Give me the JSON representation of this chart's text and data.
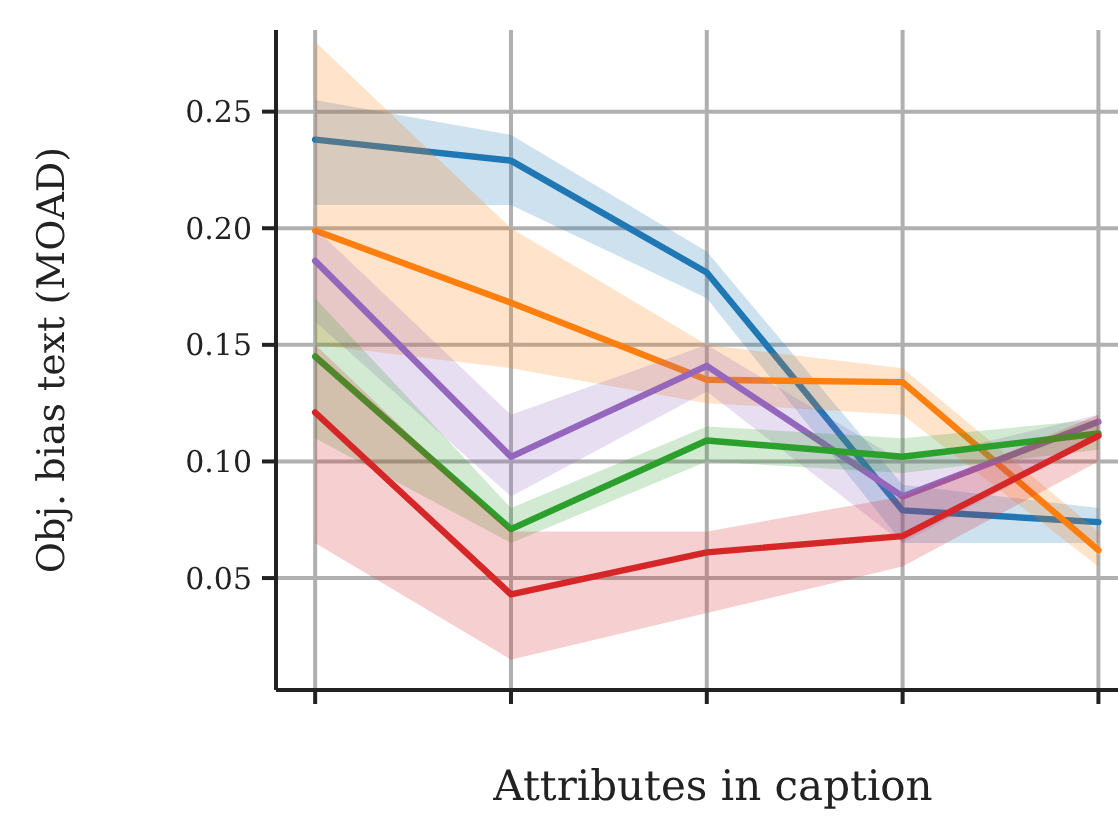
{
  "chart_data": {
    "type": "line",
    "xlabel": "Attributes in caption",
    "ylabel": "Obj. bias text (MOAD)",
    "categories": [
      null,
      null,
      null,
      null,
      null
    ],
    "series": [
      {
        "color": "#1f77b4",
        "values": [
          0.238,
          0.229,
          0.181,
          0.079,
          0.074
        ],
        "lower": [
          0.21,
          0.21,
          0.17,
          0.065,
          0.065
        ],
        "upper": [
          0.255,
          0.24,
          0.19,
          0.09,
          0.08
        ]
      },
      {
        "color": "#ff7f0e",
        "values": [
          0.199,
          0.168,
          0.135,
          0.134,
          0.062
        ],
        "lower": [
          0.15,
          0.14,
          0.125,
          0.12,
          0.055
        ],
        "upper": [
          0.28,
          0.2,
          0.15,
          0.14,
          0.07
        ]
      },
      {
        "color": "#9467bd",
        "values": [
          0.186,
          0.102,
          0.141,
          0.085,
          0.117
        ],
        "lower": [
          0.16,
          0.085,
          0.13,
          0.065,
          0.11
        ],
        "upper": [
          0.2,
          0.12,
          0.15,
          0.1,
          0.12
        ]
      },
      {
        "color": "#2ca02c",
        "values": [
          0.145,
          0.071,
          0.109,
          0.102,
          0.112
        ],
        "lower": [
          0.11,
          0.065,
          0.1,
          0.095,
          0.105
        ],
        "upper": [
          0.17,
          0.08,
          0.115,
          0.11,
          0.118
        ]
      },
      {
        "color": "#d62728",
        "values": [
          0.121,
          0.043,
          0.061,
          0.068,
          0.111
        ],
        "lower": [
          0.065,
          0.015,
          0.035,
          0.055,
          0.1
        ],
        "upper": [
          0.15,
          0.07,
          0.07,
          0.085,
          0.12
        ]
      }
    ],
    "ylim": [
      0.002,
      0.285
    ],
    "yticks": [
      0.05,
      {
        "value": 0.1,
        "label": "0.10"
      },
      0.15,
      {
        "value": 0.2,
        "label": "0.20"
      },
      0.25
    ],
    "grid": true,
    "line_style": "solid"
  }
}
